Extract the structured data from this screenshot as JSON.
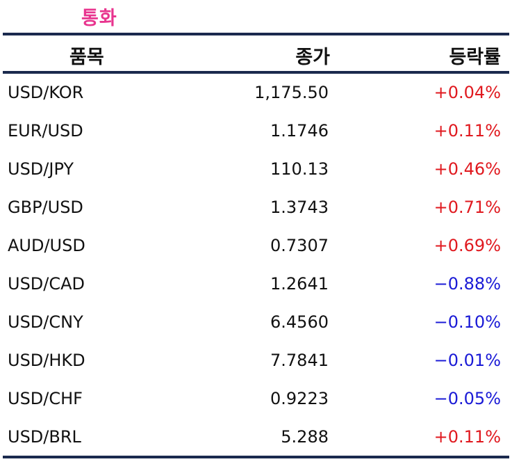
{
  "title": "통화",
  "colors": {
    "title": "#e8358f",
    "rule": "#1b2a4e",
    "up": "#e0191f",
    "down": "#1a1ad6"
  },
  "headers": {
    "item": "품목",
    "close": "종가",
    "change": "등락률"
  },
  "rows": [
    {
      "item": "USD/KOR",
      "close": "1,175.50",
      "change": "+0.04%",
      "dir": "up"
    },
    {
      "item": "EUR/USD",
      "close": "1.1746",
      "change": "+0.11%",
      "dir": "up"
    },
    {
      "item": "USD/JPY",
      "close": "110.13",
      "change": "+0.46%",
      "dir": "up"
    },
    {
      "item": "GBP/USD",
      "close": "1.3743",
      "change": "+0.71%",
      "dir": "up"
    },
    {
      "item": "AUD/USD",
      "close": "0.7307",
      "change": "+0.69%",
      "dir": "up"
    },
    {
      "item": "USD/CAD",
      "close": "1.2641",
      "change": "−0.88%",
      "dir": "down"
    },
    {
      "item": "USD/CNY",
      "close": "6.4560",
      "change": "−0.10%",
      "dir": "down"
    },
    {
      "item": "USD/HKD",
      "close": "7.7841",
      "change": "−0.01%",
      "dir": "down"
    },
    {
      "item": "USD/CHF",
      "close": "0.9223",
      "change": "−0.05%",
      "dir": "down"
    },
    {
      "item": "USD/BRL",
      "close": "5.288",
      "change": "+0.11%",
      "dir": "up"
    }
  ]
}
